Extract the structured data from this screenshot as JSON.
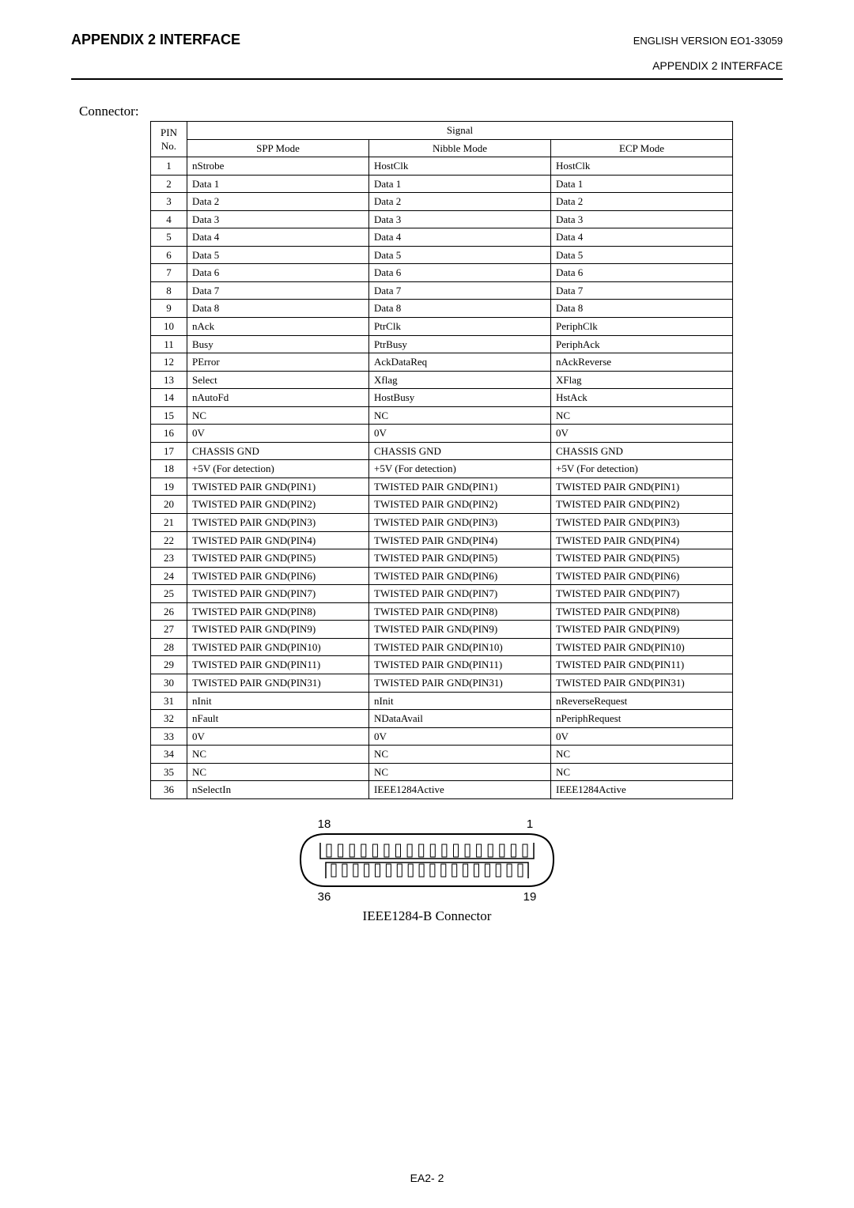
{
  "header": {
    "left_title": "APPENDIX 2  INTERFACE",
    "right_title": "ENGLISH VERSION EO1-33059",
    "sub_right": "APPENDIX 2  INTERFACE"
  },
  "connector_label": "Connector:",
  "table": {
    "header_pin_line1": "PIN",
    "header_pin_line2": "No.",
    "header_signal": "Signal",
    "mode_headers": [
      "SPP Mode",
      "Nibble Mode",
      "ECP Mode"
    ],
    "rows": [
      {
        "pin": "1",
        "spp": "nStrobe",
        "nibble": "HostClk",
        "ecp": "HostClk"
      },
      {
        "pin": "2",
        "spp": "Data 1",
        "nibble": "Data 1",
        "ecp": "Data 1"
      },
      {
        "pin": "3",
        "spp": "Data 2",
        "nibble": "Data 2",
        "ecp": "Data 2"
      },
      {
        "pin": "4",
        "spp": "Data 3",
        "nibble": "Data 3",
        "ecp": "Data 3"
      },
      {
        "pin": "5",
        "spp": "Data 4",
        "nibble": "Data 4",
        "ecp": "Data 4"
      },
      {
        "pin": "6",
        "spp": "Data 5",
        "nibble": "Data 5",
        "ecp": "Data 5"
      },
      {
        "pin": "7",
        "spp": "Data 6",
        "nibble": "Data 6",
        "ecp": "Data 6"
      },
      {
        "pin": "8",
        "spp": "Data 7",
        "nibble": "Data 7",
        "ecp": "Data 7"
      },
      {
        "pin": "9",
        "spp": "Data 8",
        "nibble": "Data 8",
        "ecp": "Data 8"
      },
      {
        "pin": "10",
        "spp": "nAck",
        "nibble": "PtrClk",
        "ecp": "PeriphClk"
      },
      {
        "pin": "11",
        "spp": "Busy",
        "nibble": "PtrBusy",
        "ecp": "PeriphAck"
      },
      {
        "pin": "12",
        "spp": "PError",
        "nibble": "AckDataReq",
        "ecp": "nAckReverse"
      },
      {
        "pin": "13",
        "spp": "Select",
        "nibble": "Xflag",
        "ecp": "XFlag"
      },
      {
        "pin": "14",
        "spp": "nAutoFd",
        "nibble": "HostBusy",
        "ecp": "HstAck"
      },
      {
        "pin": "15",
        "spp": "NC",
        "nibble": "NC",
        "ecp": "NC"
      },
      {
        "pin": "16",
        "spp": "0V",
        "nibble": "0V",
        "ecp": "0V"
      },
      {
        "pin": "17",
        "spp": "CHASSIS GND",
        "nibble": "CHASSIS GND",
        "ecp": "CHASSIS GND"
      },
      {
        "pin": "18",
        "spp": "+5V (For detection)",
        "nibble": "+5V (For detection)",
        "ecp": "+5V (For detection)"
      },
      {
        "pin": "19",
        "spp": "TWISTED PAIR GND(PIN1)",
        "nibble": "TWISTED PAIR GND(PIN1)",
        "ecp": "TWISTED PAIR GND(PIN1)"
      },
      {
        "pin": "20",
        "spp": "TWISTED PAIR GND(PIN2)",
        "nibble": "TWISTED PAIR GND(PIN2)",
        "ecp": "TWISTED PAIR GND(PIN2)"
      },
      {
        "pin": "21",
        "spp": "TWISTED PAIR GND(PIN3)",
        "nibble": "TWISTED PAIR GND(PIN3)",
        "ecp": "TWISTED PAIR GND(PIN3)"
      },
      {
        "pin": "22",
        "spp": "TWISTED PAIR GND(PIN4)",
        "nibble": "TWISTED PAIR GND(PIN4)",
        "ecp": "TWISTED PAIR GND(PIN4)"
      },
      {
        "pin": "23",
        "spp": "TWISTED PAIR GND(PIN5)",
        "nibble": "TWISTED PAIR GND(PIN5)",
        "ecp": "TWISTED PAIR GND(PIN5)"
      },
      {
        "pin": "24",
        "spp": "TWISTED PAIR GND(PIN6)",
        "nibble": "TWISTED PAIR GND(PIN6)",
        "ecp": "TWISTED PAIR GND(PIN6)"
      },
      {
        "pin": "25",
        "spp": "TWISTED PAIR GND(PIN7)",
        "nibble": "TWISTED PAIR GND(PIN7)",
        "ecp": "TWISTED PAIR GND(PIN7)"
      },
      {
        "pin": "26",
        "spp": "TWISTED PAIR GND(PIN8)",
        "nibble": "TWISTED PAIR GND(PIN8)",
        "ecp": "TWISTED PAIR GND(PIN8)"
      },
      {
        "pin": "27",
        "spp": "TWISTED PAIR GND(PIN9)",
        "nibble": "TWISTED PAIR GND(PIN9)",
        "ecp": "TWISTED PAIR GND(PIN9)"
      },
      {
        "pin": "28",
        "spp": "TWISTED PAIR GND(PIN10)",
        "nibble": "TWISTED PAIR GND(PIN10)",
        "ecp": "TWISTED PAIR GND(PIN10)"
      },
      {
        "pin": "29",
        "spp": "TWISTED PAIR GND(PIN11)",
        "nibble": "TWISTED PAIR GND(PIN11)",
        "ecp": "TWISTED PAIR GND(PIN11)"
      },
      {
        "pin": "30",
        "spp": "TWISTED PAIR GND(PIN31)",
        "nibble": "TWISTED PAIR GND(PIN31)",
        "ecp": "TWISTED PAIR GND(PIN31)"
      },
      {
        "pin": "31",
        "spp": "nInit",
        "nibble": "nInit",
        "ecp": "nReverseRequest"
      },
      {
        "pin": "32",
        "spp": "nFault",
        "nibble": "NDataAvail",
        "ecp": "nPeriphRequest"
      },
      {
        "pin": "33",
        "spp": "0V",
        "nibble": "0V",
        "ecp": "0V"
      },
      {
        "pin": "34",
        "spp": "NC",
        "nibble": "NC",
        "ecp": "NC"
      },
      {
        "pin": "35",
        "spp": "NC",
        "nibble": "NC",
        "ecp": "NC"
      },
      {
        "pin": "36",
        "spp": "nSelectIn",
        "nibble": "IEEE1284Active",
        "ecp": "IEEE1284Active"
      }
    ]
  },
  "connector_figure": {
    "labels": {
      "top_left": "18",
      "top_right": "1",
      "bottom_left": "36",
      "bottom_right": "19"
    },
    "top_pin_count": 18,
    "bottom_pin_count": 18,
    "outline_color": "#000000",
    "fill_color": "#ffffff",
    "stroke_width": 2,
    "caption": "IEEE1284-B Connector"
  },
  "footer": {
    "page_number": "EA2- 2"
  },
  "style": {
    "page_bg": "#ffffff",
    "text_color": "#000000",
    "table_border_color": "#000000",
    "body_font": "Times New Roman",
    "header_font": "Arial"
  }
}
